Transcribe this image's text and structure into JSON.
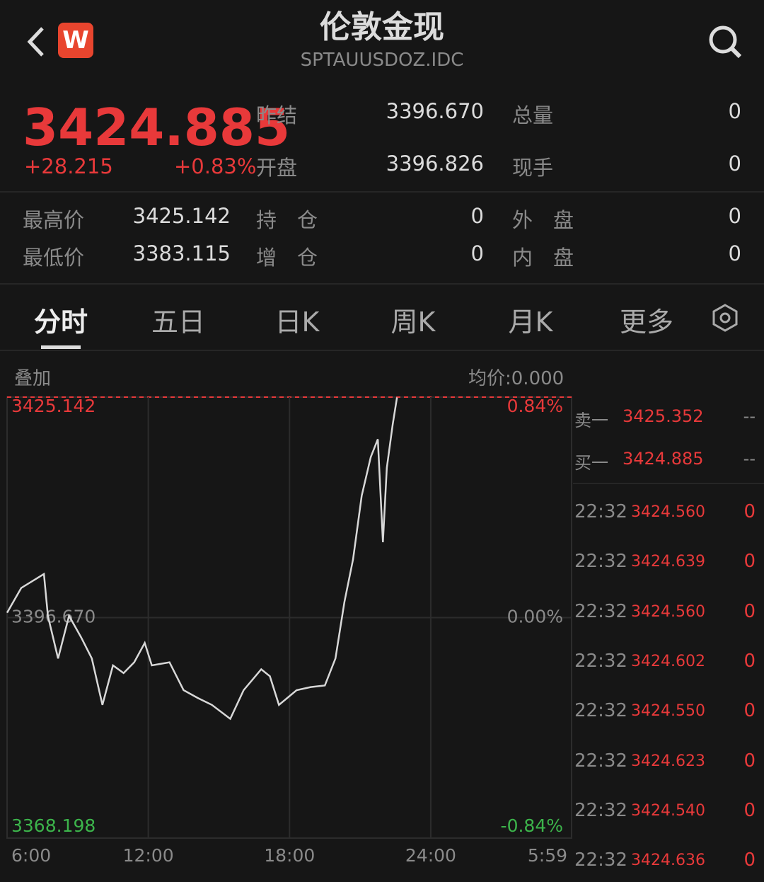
{
  "header": {
    "title": "伦敦金现",
    "code": "SPTAUUSDOZ.IDC",
    "logo": "W"
  },
  "quote": {
    "price": "3424.885",
    "change": "+28.215",
    "change_pct": "+0.83%"
  },
  "stats": [
    [
      "昨结",
      "3396.670",
      "总量",
      "0"
    ],
    [
      "开盘",
      "3396.826",
      "现手",
      "0"
    ]
  ],
  "stats2": [
    [
      "最高价",
      "3425.142",
      "持　仓",
      "0",
      "外　盘",
      "0"
    ],
    [
      "最低价",
      "3383.115",
      "增　仓",
      "0",
      "内　盘",
      "0"
    ]
  ],
  "tabs": [
    "分时",
    "五日",
    "日K",
    "周K",
    "月K",
    "更多"
  ],
  "overlay": "叠加",
  "avg": "均价:0.000",
  "chart_data": {
    "type": "line",
    "color": "#d8d8d8",
    "x": [
      0,
      36,
      94,
      104,
      130,
      158,
      189,
      216,
      243,
      270,
      297,
      324,
      351,
      369,
      414,
      450,
      486,
      522,
      569,
      603,
      648,
      670,
      693,
      738,
      774,
      810,
      837,
      860,
      882,
      904,
      927,
      945,
      958,
      968,
      983,
      994
    ],
    "values": [
      3397.3,
      3400.5,
      3402.3,
      3396.9,
      3391.4,
      3396.9,
      3394.1,
      3391.4,
      3385.4,
      3390.5,
      3389.5,
      3390.9,
      3393.4,
      3390.5,
      3390.9,
      3387.3,
      3386.3,
      3385.4,
      3383.6,
      3387.3,
      3390.0,
      3389.1,
      3385.4,
      3387.3,
      3387.7,
      3387.9,
      3391.4,
      3398.7,
      3404.2,
      3412.4,
      3417.4,
      3419.7,
      3406.4,
      3416.0,
      3421.6,
      3425.1
    ],
    "xlim": [
      0,
      1439
    ],
    "xticks": [
      {
        "value": 0,
        "label": "6:00"
      },
      {
        "value": 360,
        "label": "12:00"
      },
      {
        "value": 720,
        "label": "18:00"
      },
      {
        "value": 1080,
        "label": "24:00"
      },
      {
        "value": 1439,
        "label": "5:59"
      }
    ],
    "ylim": [
      3368.198,
      3425.142
    ],
    "yticks": [
      {
        "value": 3425.142,
        "label": "3425.142"
      },
      {
        "value": 3396.67,
        "label": "3396.670"
      },
      {
        "value": 3368.198,
        "label": "3368.198"
      }
    ],
    "y2lim": [
      -0.84,
      0.84
    ],
    "y2ticks": [
      {
        "value": 0.84,
        "label": "0.84%"
      },
      {
        "value": 0,
        "label": "0.00%"
      },
      {
        "value": -0.84,
        "label": "-0.84%"
      }
    ],
    "grid": true
  },
  "order_book": [
    [
      "卖一",
      "3425.352",
      "--"
    ],
    [
      "买一",
      "3424.885",
      "--"
    ]
  ],
  "trades": [
    [
      "22:32",
      "3424.560",
      "0"
    ],
    [
      "22:32",
      "3424.639",
      "0"
    ],
    [
      "22:32",
      "3424.560",
      "0"
    ],
    [
      "22:32",
      "3424.602",
      "0"
    ],
    [
      "22:32",
      "3424.550",
      "0"
    ],
    [
      "22:32",
      "3424.623",
      "0"
    ],
    [
      "22:32",
      "3424.540",
      "0"
    ],
    [
      "22:32",
      "3424.636",
      "0"
    ]
  ]
}
